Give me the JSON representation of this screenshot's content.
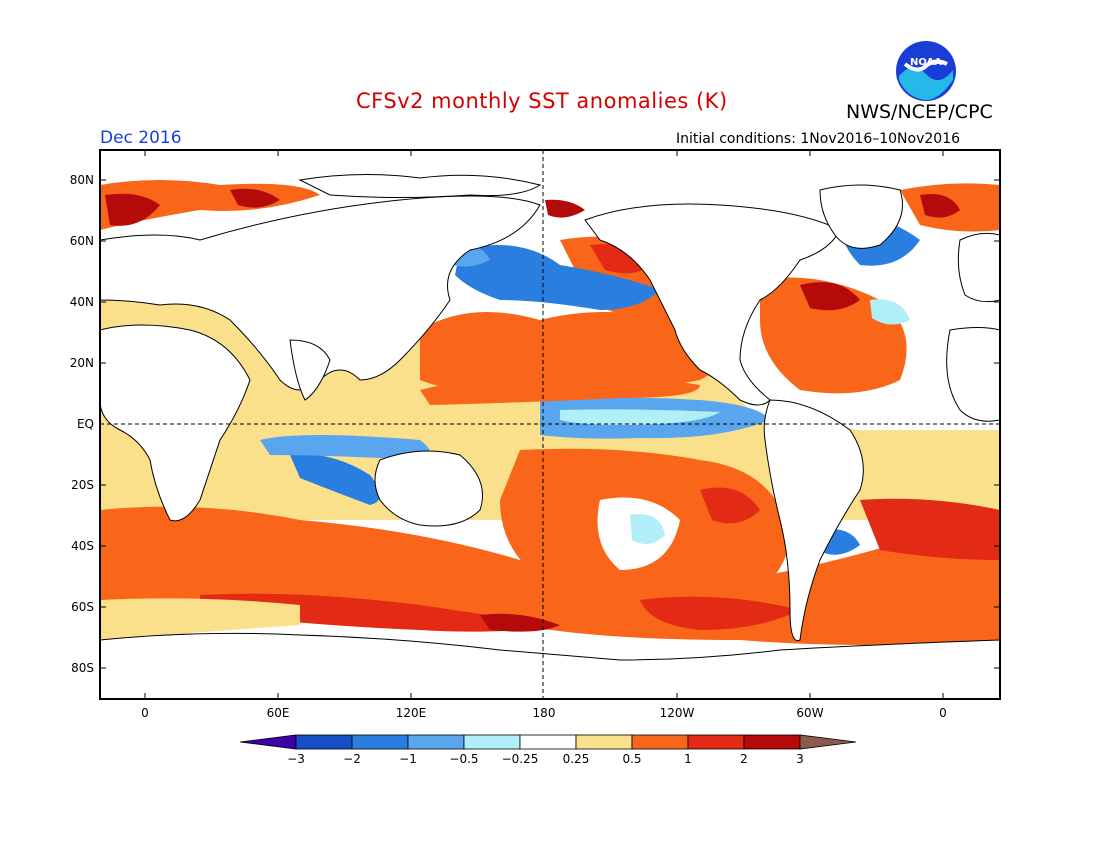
{
  "header": {
    "title": "CFSv2 monthly SST anomalies (K)",
    "organization": "NWS/NCEP/CPC",
    "month": "Dec 2016",
    "initial_conditions": "Initial conditions: 1Nov2016–10Nov2016",
    "logo_text": "NOAA"
  },
  "axes": {
    "lat_labels": [
      "80N",
      "60N",
      "40N",
      "20N",
      "EQ",
      "20S",
      "40S",
      "60S",
      "80S"
    ],
    "lon_labels": [
      "0",
      "60E",
      "120E",
      "180",
      "120W",
      "60W",
      "0"
    ]
  },
  "colorbar": {
    "labels": [
      "−3",
      "−2",
      "−1",
      "−0.5",
      "−0.25",
      "0.25",
      "0.5",
      "1",
      "2",
      "3"
    ],
    "colors": [
      "#3c00a6",
      "#1650c8",
      "#2a7ee0",
      "#5aa6ee",
      "#b0eef8",
      "#ffffff",
      "#fbe08c",
      "#f9661a",
      "#e22a14",
      "#b40a0a",
      "#8a5a4a"
    ]
  },
  "colors": {
    "land": "#ffffff",
    "title": "#d40000",
    "month": "#1a3dd8"
  }
}
